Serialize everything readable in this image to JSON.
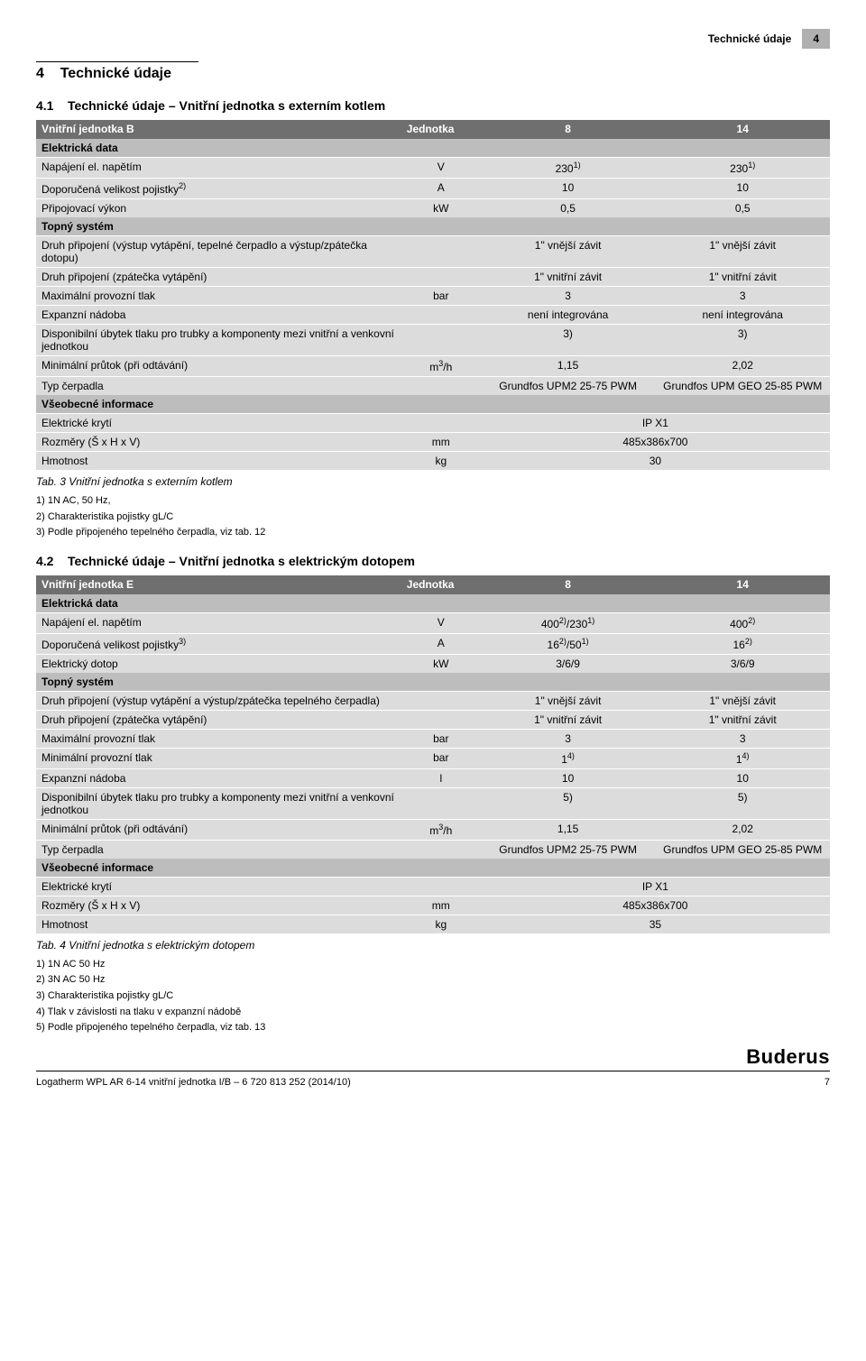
{
  "top_tab": {
    "label": "Technické údaje",
    "num": "4"
  },
  "section": {
    "num": "4",
    "title": "Technické údaje"
  },
  "sub1": {
    "num": "4.1",
    "title": "Technické údaje – Vnitřní jednotka s externím kotlem"
  },
  "sub2": {
    "num": "4.2",
    "title": "Technické údaje – Vnitřní jednotka s elektrickým dotopem"
  },
  "t1": {
    "header": [
      "Vnitřní jednotka B",
      "Jednotka",
      "8",
      "14"
    ],
    "sec_a": "Elektrická data",
    "r_nap": {
      "label": "Napájení el. napětím",
      "unit": "V",
      "v1": "230",
      "sup1": "1)",
      "v2": "230",
      "sup2": "1)"
    },
    "r_poj": {
      "label": "Doporučená velikost pojistky",
      "sup": "2)",
      "unit": "A",
      "v1": "10",
      "v2": "10"
    },
    "r_vyk": {
      "label": "Připojovací výkon",
      "unit": "kW",
      "v1": "0,5",
      "v2": "0,5"
    },
    "sec_b": "Topný systém",
    "r_dp1": {
      "label": "Druh připojení (výstup vytápění, tepelné čerpadlo a výstup/zpátečka dotopu)",
      "v1": "1\" vnější závit",
      "v2": "1\" vnější závit"
    },
    "r_dp2": {
      "label": "Druh připojení (zpátečka vytápění)",
      "v1": "1\" vnitřní závit",
      "v2": "1\" vnitřní závit"
    },
    "r_max": {
      "label": "Maximální provozní tlak",
      "unit": "bar",
      "v1": "3",
      "v2": "3"
    },
    "r_exp": {
      "label": "Expanzní nádoba",
      "v1": "není integrována",
      "v2": "není integrována"
    },
    "r_dis": {
      "label": "Disponibilní úbytek tlaku pro trubky a komponenty mezi vnitřní a venkovní jednotkou",
      "v1": "3)",
      "v2": "3)"
    },
    "r_minp": {
      "label": "Minimální průtok (při odtávání)",
      "unit_html": "m<sup>3</sup>/h",
      "v1": "1,15",
      "v2": "2,02"
    },
    "r_typ": {
      "label": "Typ čerpadla",
      "v1": "Grundfos UPM2 25-75 PWM",
      "v2": "Grundfos UPM GEO 25-85 PWM"
    },
    "sec_c": "Všeobecné informace",
    "r_kryt": {
      "label": "Elektrické krytí",
      "span": "IP X1"
    },
    "r_roz": {
      "label": "Rozměry (Š x H x V)",
      "unit": "mm",
      "span": "485x386x700"
    },
    "r_hm": {
      "label": "Hmotnost",
      "unit": "kg",
      "span": "30"
    },
    "caption": "Tab. 3   Vnitřní jednotka s externím kotlem",
    "notes": [
      "1)  1N AC, 50 Hz,",
      "2)  Charakteristika pojistky gL/C",
      "3)  Podle připojeného tepelného čerpadla, viz tab.  12"
    ]
  },
  "t2": {
    "header": [
      "Vnitřní jednotka E",
      "Jednotka",
      "8",
      "14"
    ],
    "sec_a": "Elektrická data",
    "r_nap": {
      "label": "Napájení el. napětím",
      "unit": "V",
      "v1_html": "400<sup>2)</sup>/230<sup>1)</sup>",
      "v2_html": "400<sup>2)</sup>"
    },
    "r_poj": {
      "label": "Doporučená velikost pojistky",
      "sup": "3)",
      "unit": "A",
      "v1_html": "16<sup>2)</sup>/50<sup>1)</sup>",
      "v2_html": "16<sup>2)</sup>"
    },
    "r_dot": {
      "label": "Elektrický dotop",
      "unit": "kW",
      "v1": "3/6/9",
      "v2": "3/6/9"
    },
    "sec_b": "Topný systém",
    "r_dp1": {
      "label": "Druh připojení (výstup vytápění a výstup/zpátečka tepelného čerpadla)",
      "v1": "1\" vnější závit",
      "v2": "1\" vnější závit"
    },
    "r_dp2": {
      "label": "Druh připojení (zpátečka vytápění)",
      "v1": "1\" vnitřní závit",
      "v2": "1\" vnitřní závit"
    },
    "r_max": {
      "label": "Maximální provozní tlak",
      "unit": "bar",
      "v1": "3",
      "v2": "3"
    },
    "r_min": {
      "label": "Minimální provozní tlak",
      "unit": "bar",
      "v1_html": "1<sup>4)</sup>",
      "v2_html": "1<sup>4)</sup>"
    },
    "r_exp": {
      "label": "Expanzní nádoba",
      "unit": "l",
      "v1": "10",
      "v2": "10"
    },
    "r_dis": {
      "label": "Disponibilní úbytek tlaku pro trubky a komponenty mezi vnitřní a venkovní jednotkou",
      "v1": "5)",
      "v2": "5)"
    },
    "r_minp": {
      "label": "Minimální průtok (při odtávání)",
      "unit_html": "m<sup>3</sup>/h",
      "v1": "1,15",
      "v2": "2,02"
    },
    "r_typ": {
      "label": "Typ čerpadla",
      "v1": "Grundfos UPM2 25-75 PWM",
      "v2": "Grundfos UPM GEO 25-85 PWM"
    },
    "sec_c": "Všeobecné informace",
    "r_kryt": {
      "label": "Elektrické krytí",
      "span": "IP X1"
    },
    "r_roz": {
      "label": "Rozměry (Š x H x V)",
      "unit": "mm",
      "span": "485x386x700"
    },
    "r_hm": {
      "label": "Hmotnost",
      "unit": "kg",
      "span": "35"
    },
    "caption": "Tab. 4   Vnitřní jednotka s elektrickým dotopem",
    "notes": [
      "1)  1N AC 50 Hz",
      "2)  3N AC 50 Hz",
      "3)  Charakteristika pojistky gL/C",
      "4)  Tlak v závislosti na tlaku v expanzní nádobě",
      "5)  Podle připojeného tepelného čerpadla, viz tab.  13"
    ]
  },
  "footer": {
    "doc": "Logatherm WPL AR 6-14 vnitřní jednotka I/B – 6 720 813 252 (2014/10)",
    "brand": "Buderus",
    "page": "7"
  },
  "colors": {
    "header_bg": "#6f6f6f",
    "section_bg": "#bdbdbd",
    "row_bg": "#dcdcdc",
    "tab_bg": "#b0b0b0"
  }
}
